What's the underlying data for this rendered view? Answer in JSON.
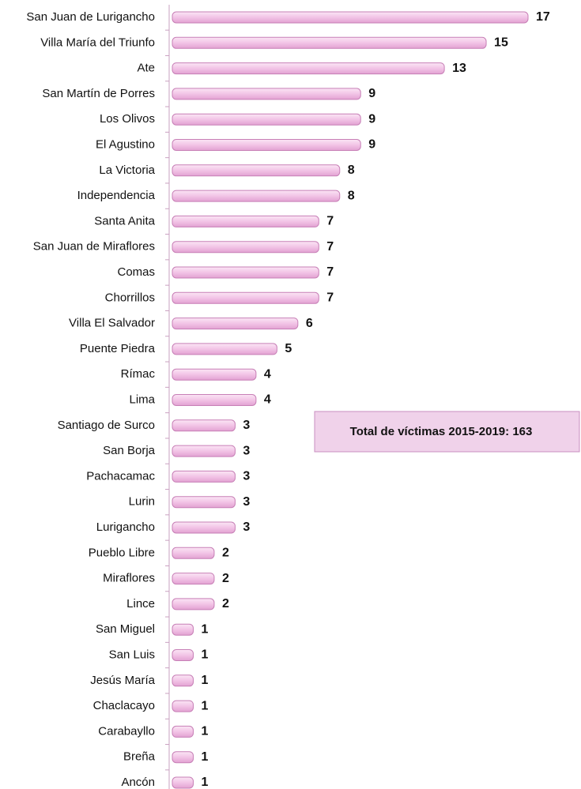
{
  "chart_data": {
    "type": "bar",
    "orientation": "horizontal",
    "categories": [
      "San Juan de Lurigancho",
      "Villa María del Triunfo",
      "Ate",
      "San Martín de Porres",
      "Los Olivos",
      "El Agustino",
      "La Victoria",
      "Independencia",
      "Santa Anita",
      "San Juan de Miraflores",
      "Comas",
      "Chorrillos",
      "Villa El Salvador",
      "Puente Piedra",
      "Rímac",
      "Lima",
      "Santiago de Surco",
      "San Borja",
      "Pachacamac",
      "Lurin",
      "Lurigancho",
      "Pueblo Libre",
      "Miraflores",
      "Lince",
      "San Miguel",
      "San Luis",
      "Jesús María",
      "Chaclacayo",
      "Carabayllo",
      "Breña",
      "Ancón"
    ],
    "values": [
      17,
      15,
      13,
      9,
      9,
      9,
      8,
      8,
      7,
      7,
      7,
      7,
      6,
      5,
      4,
      4,
      3,
      3,
      3,
      3,
      3,
      2,
      2,
      2,
      1,
      1,
      1,
      1,
      1,
      1,
      1
    ],
    "color": "#f2c4e6",
    "xlim": [
      0,
      17
    ],
    "annotation": "Total de víctimas 2015-2019: 163"
  }
}
